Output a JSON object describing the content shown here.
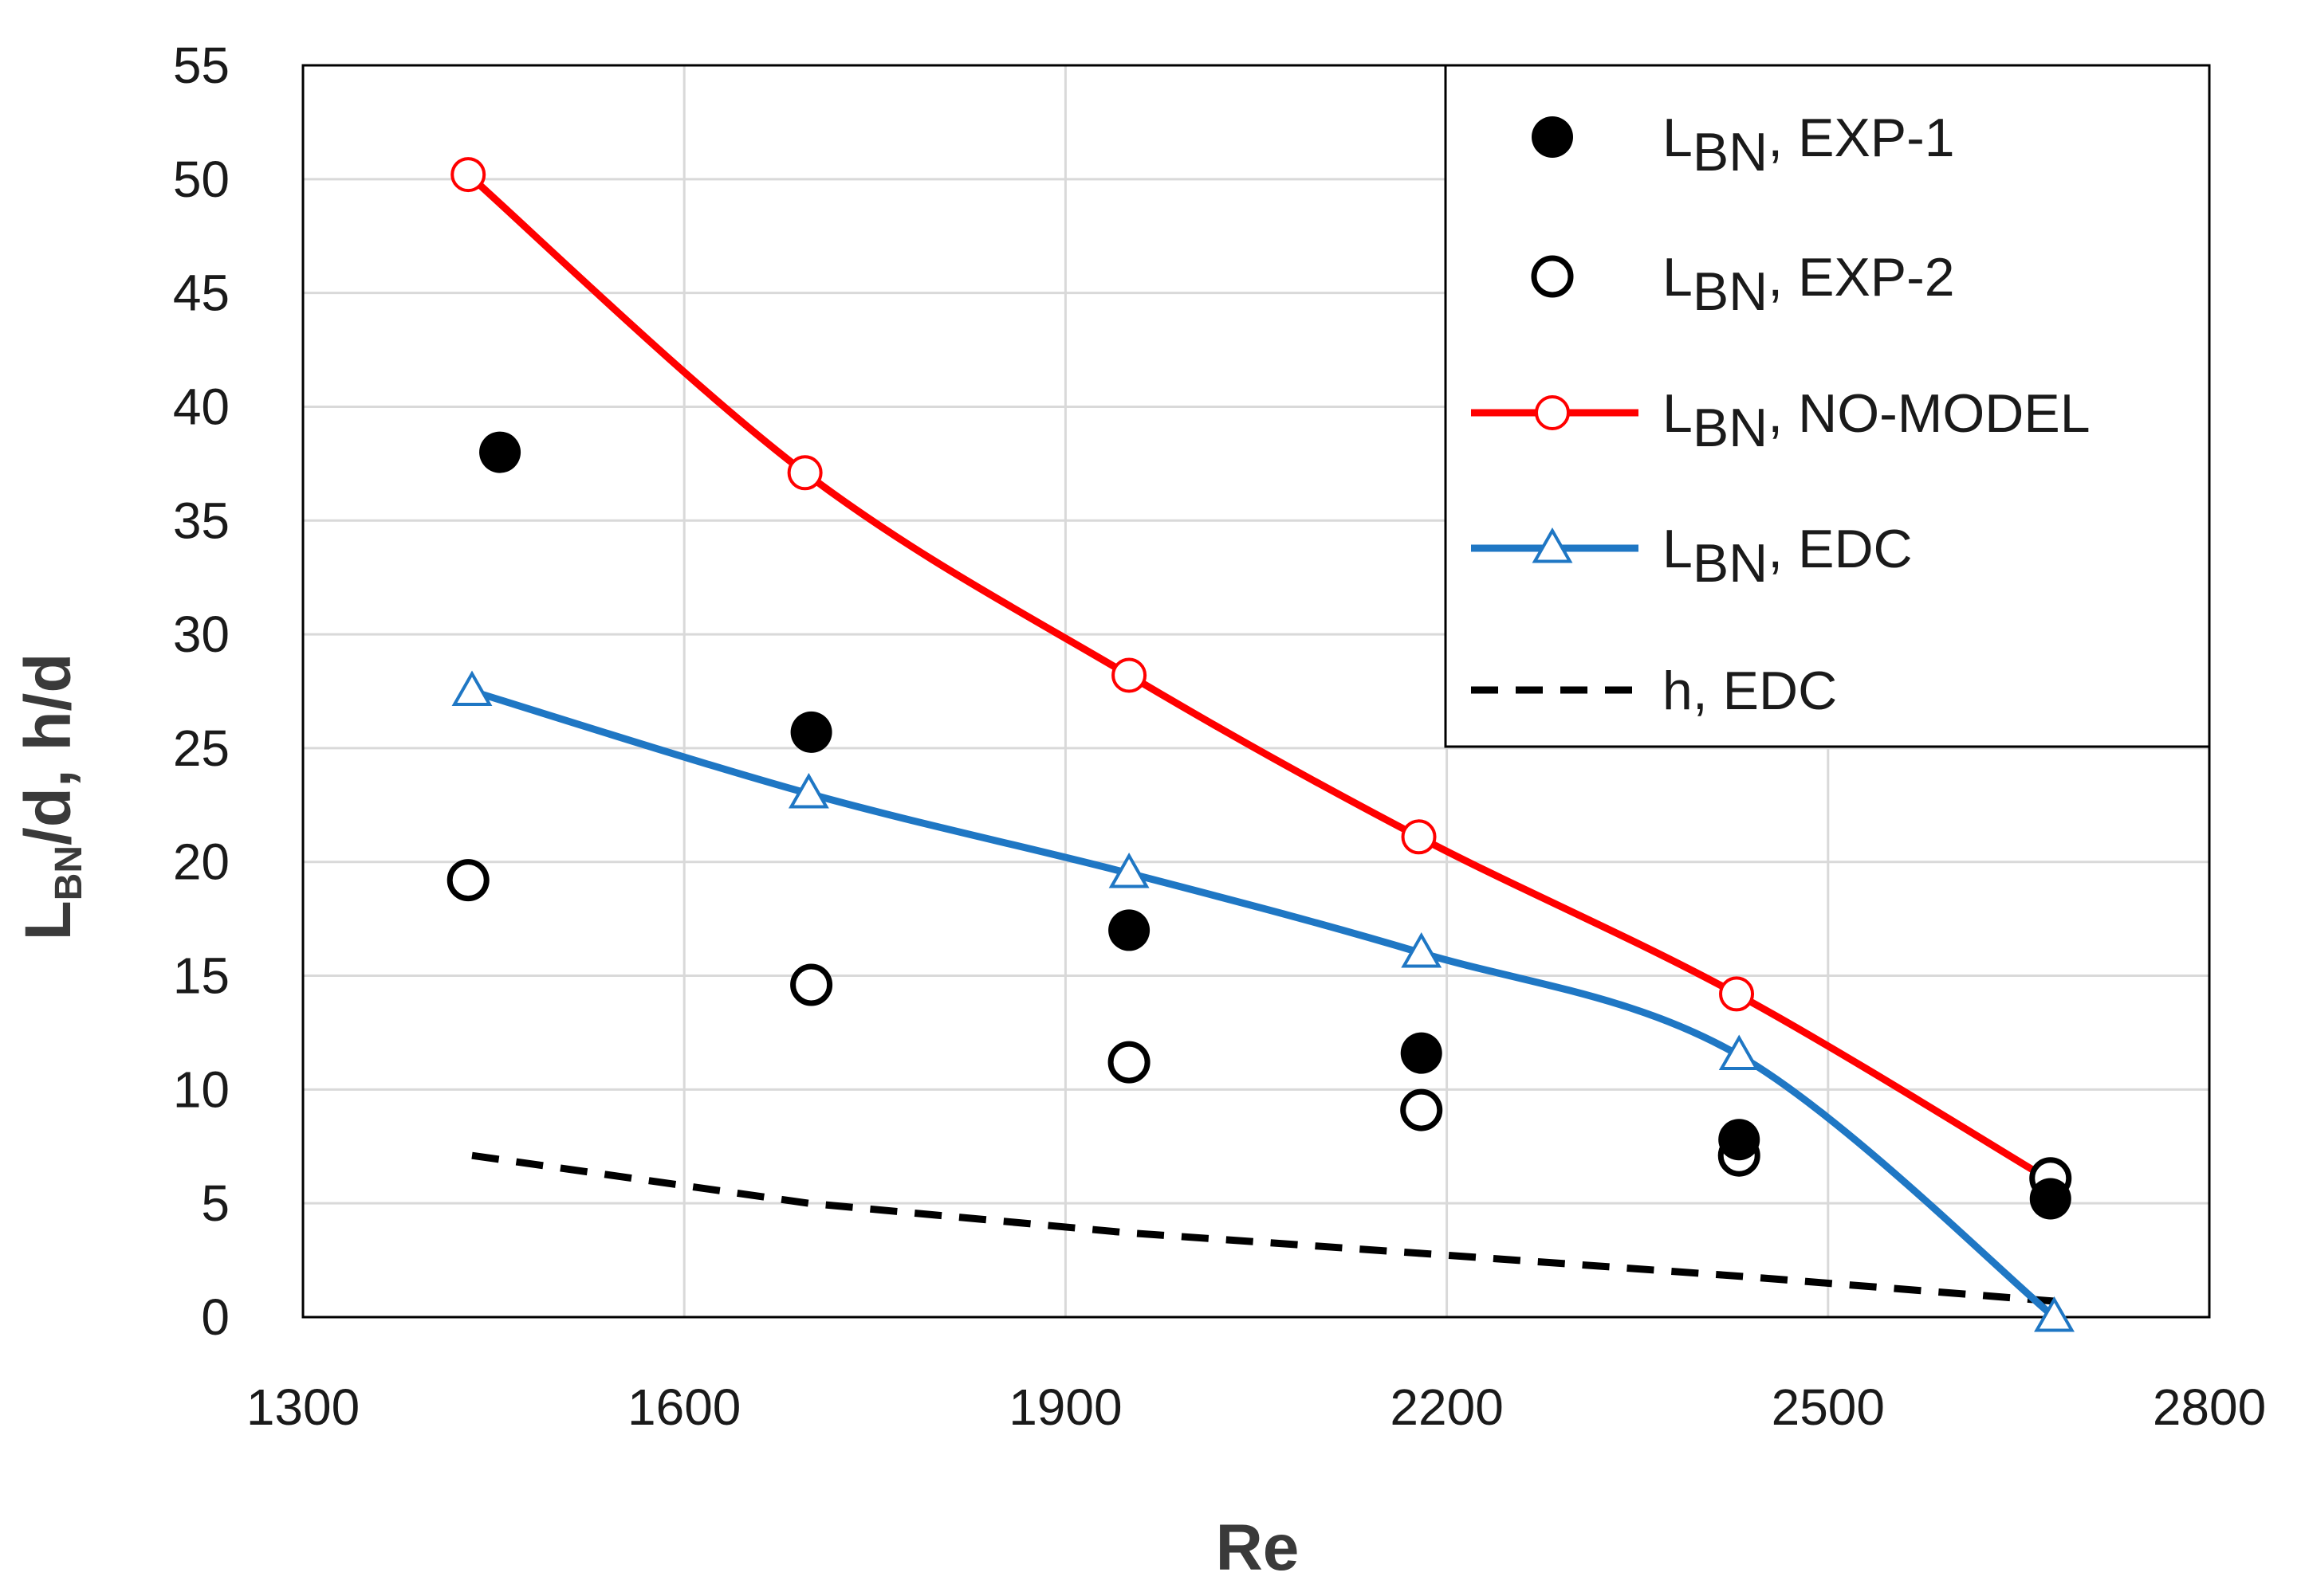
{
  "chart_data": {
    "type": "line",
    "xlabel": "Re",
    "ylabel": {
      "main": "L",
      "sub": "BN",
      "rest": "/d, h/d"
    },
    "xlim": [
      1300,
      2800
    ],
    "ylim": [
      0,
      55
    ],
    "xticks": [
      1300,
      1600,
      1900,
      2200,
      2500,
      2800
    ],
    "yticks": [
      0,
      5,
      10,
      15,
      20,
      25,
      30,
      35,
      40,
      45,
      50,
      55
    ],
    "grid": true,
    "legend_position": "top-right",
    "series": [
      {
        "name": "LBN, EXP-1",
        "label_main": "L",
        "label_sub": "BN",
        "label_rest": ", EXP-1",
        "style": "filled-circle",
        "color": "#000000",
        "x": [
          1455,
          1700,
          1950,
          2180,
          2430,
          2675
        ],
        "y": [
          38.0,
          25.7,
          17.0,
          11.6,
          7.8,
          5.2
        ]
      },
      {
        "name": "LBN, EXP-2",
        "label_main": "L",
        "label_sub": "BN",
        "label_rest": ", EXP-2",
        "style": "open-circle",
        "color": "#000000",
        "x": [
          1430,
          1700,
          1950,
          2180,
          2430,
          2675
        ],
        "y": [
          19.2,
          14.6,
          11.2,
          9.1,
          7.1,
          6.1
        ]
      },
      {
        "name": "LBN, NO-MODEL",
        "label_main": "L",
        "label_sub": "BN",
        "label_rest": ", NO-MODEL",
        "style": "line-open-circle",
        "color": "#ff0000",
        "x": [
          1430,
          1695,
          1950,
          2178,
          2428,
          2675
        ],
        "y": [
          50.2,
          37.1,
          28.2,
          21.1,
          14.2,
          6.0
        ]
      },
      {
        "name": "LBN, EDC",
        "label_main": "L",
        "label_sub": "BN",
        "label_rest": ", EDC",
        "style": "line-open-triangle",
        "color": "#1f77c4",
        "x": [
          1433,
          1698,
          1950,
          2180,
          2430,
          2678
        ],
        "y": [
          27.5,
          23.0,
          19.5,
          16.0,
          11.5,
          0.0
        ]
      },
      {
        "name": "h, EDC",
        "label_main": "h, EDC",
        "label_sub": "",
        "label_rest": "",
        "style": "dashed-line",
        "color": "#000000",
        "x": [
          1433,
          1698,
          1950,
          2180,
          2430,
          2678
        ],
        "y": [
          7.1,
          5.0,
          3.7,
          2.8,
          1.8,
          0.7
        ]
      }
    ]
  }
}
